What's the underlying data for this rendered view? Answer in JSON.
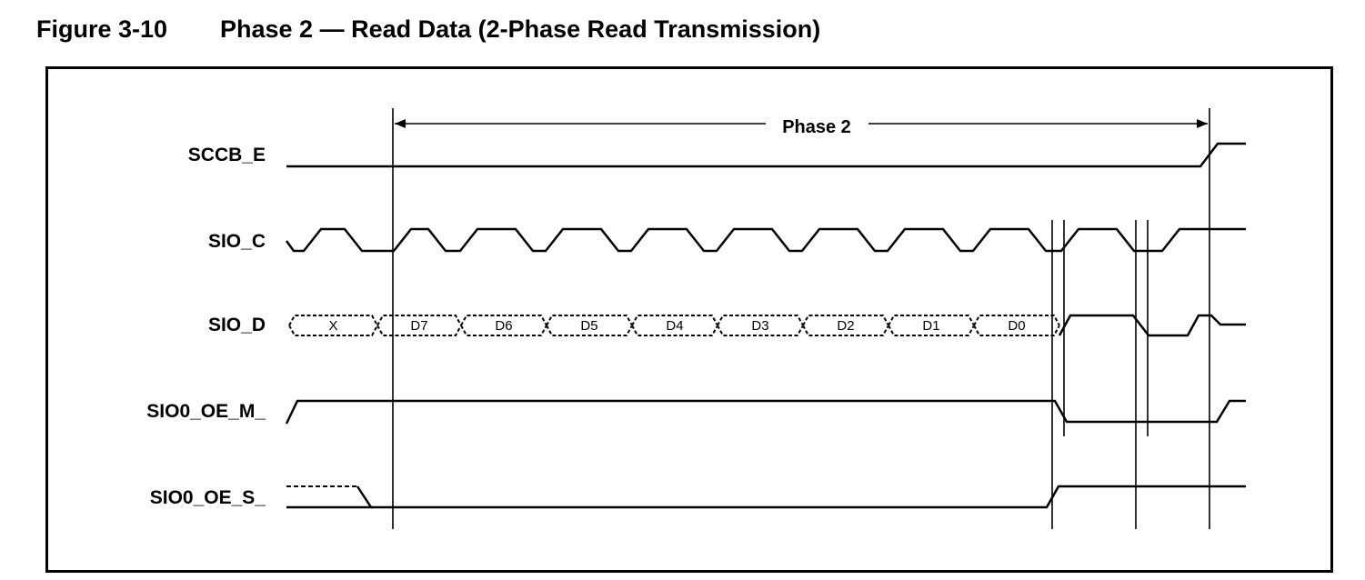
{
  "figure": {
    "number": "Figure 3-10",
    "title": "Phase 2 — Read Data (2-Phase Read Transmission)"
  },
  "phase": {
    "label": "Phase 2"
  },
  "signals": [
    {
      "id": "sccb_e",
      "label": "SCCB_E"
    },
    {
      "id": "sio_c",
      "label": "SIO_C"
    },
    {
      "id": "sio_d",
      "label": "SIO_D"
    },
    {
      "id": "sio0_oe_m",
      "label": "SIO0_OE_M_"
    },
    {
      "id": "sio0_oe_s",
      "label": "SIO0_OE_S_"
    }
  ],
  "sio_d_bytes": [
    "X",
    "D7",
    "D6",
    "D5",
    "D4",
    "D3",
    "D2",
    "D1",
    "D0"
  ]
}
